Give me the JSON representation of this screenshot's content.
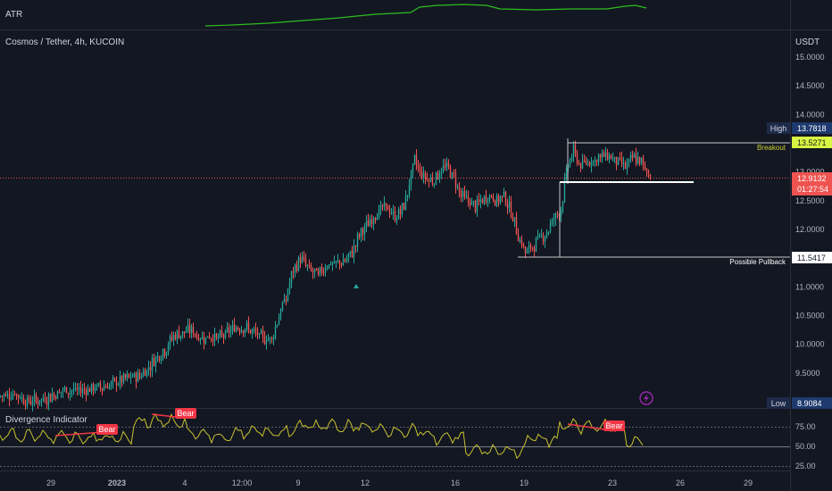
{
  "atr_pane": {
    "label": "ATR",
    "color": "#2ebd1f"
  },
  "header": {
    "symbol": "Cosmos / Tether, 4h, KUCOIN"
  },
  "price_axis": {
    "currency": "USDT",
    "ticks": [
      "15.0000",
      "14.5000",
      "14.0000",
      "13.5000",
      "13.0000",
      "12.5000",
      "12.0000",
      "11.5000",
      "11.0000",
      "10.5000",
      "10.0000",
      "9.5000",
      "9.0000"
    ]
  },
  "badges": {
    "high_label": "High",
    "high_value": "13.7818",
    "breakout_value": "13.5271",
    "last_value": "12.9132",
    "countdown": "01:27:54",
    "pullback_value": "11.5417",
    "low_label": "Low",
    "low_value": "8.9084"
  },
  "annotations": {
    "breakout": "Breakout",
    "pullback": "Possible Pullback"
  },
  "indicator": {
    "title": "Divergence Indicator",
    "ticks": [
      "75.00",
      "50.00",
      "25.00"
    ],
    "bear_label": "Bear",
    "line_color": "#c9c22e",
    "bear_color": "#f23645"
  },
  "time_axis": {
    "labels": [
      "29",
      "2023",
      "4",
      "12:00",
      "9",
      "12",
      "16",
      "19",
      "23",
      "26",
      "29"
    ]
  },
  "chart_data": {
    "type": "candlestick",
    "title": "Cosmos / Tether, 4h, KUCOIN",
    "y_unit": "USDT",
    "ylim": [
      8.8,
      15.3
    ],
    "colors": {
      "up": "#26a69a",
      "down": "#ef5350"
    },
    "close_path": [
      [
        0,
        9.1
      ],
      [
        8,
        9.15
      ],
      [
        15,
        9.0
      ],
      [
        25,
        9.05
      ],
      [
        35,
        9.2
      ],
      [
        45,
        9.2
      ],
      [
        55,
        9.25
      ],
      [
        62,
        9.3
      ],
      [
        70,
        9.4
      ],
      [
        78,
        9.45
      ],
      [
        83,
        9.6
      ],
      [
        88,
        9.8
      ],
      [
        92,
        9.9
      ],
      [
        97,
        10.15
      ],
      [
        102,
        10.2
      ],
      [
        107,
        10.25
      ],
      [
        112,
        10.1
      ],
      [
        117,
        10.15
      ],
      [
        122,
        10.1
      ],
      [
        127,
        10.2
      ],
      [
        132,
        10.3
      ],
      [
        137,
        10.3
      ],
      [
        142,
        10.2
      ],
      [
        147,
        10.1
      ],
      [
        152,
        10.1
      ],
      [
        157,
        10.6
      ],
      [
        160,
        10.8
      ],
      [
        163,
        11.2
      ],
      [
        168,
        11.5
      ],
      [
        173,
        11.3
      ],
      [
        178,
        11.2
      ],
      [
        183,
        11.4
      ],
      [
        188,
        11.4
      ],
      [
        193,
        11.45
      ],
      [
        197,
        11.6
      ],
      [
        201,
        11.9
      ],
      [
        206,
        12.1
      ],
      [
        211,
        12.3
      ],
      [
        216,
        12.4
      ],
      [
        221,
        12.2
      ],
      [
        226,
        12.4
      ],
      [
        229,
        12.8
      ],
      [
        232,
        13.2
      ],
      [
        235,
        13.0
      ],
      [
        238,
        12.9
      ],
      [
        242,
        12.85
      ],
      [
        246,
        13.0
      ],
      [
        250,
        13.1
      ],
      [
        254,
        12.9
      ],
      [
        258,
        12.6
      ],
      [
        262,
        12.5
      ],
      [
        266,
        12.4
      ],
      [
        270,
        12.5
      ],
      [
        274,
        12.6
      ],
      [
        278,
        12.5
      ],
      [
        282,
        12.6
      ],
      [
        286,
        12.3
      ],
      [
        290,
        11.9
      ],
      [
        294,
        11.6
      ],
      [
        298,
        11.7
      ],
      [
        302,
        11.85
      ],
      [
        306,
        11.95
      ],
      [
        310,
        12.2
      ],
      [
        314,
        12.35
      ],
      [
        316,
        12.8
      ],
      [
        318,
        13.15
      ],
      [
        321,
        13.35
      ],
      [
        325,
        13.1
      ],
      [
        330,
        13.2
      ],
      [
        335,
        13.25
      ],
      [
        340,
        13.3
      ],
      [
        345,
        13.2
      ],
      [
        350,
        13.1
      ],
      [
        355,
        13.25
      ],
      [
        360,
        13.15
      ],
      [
        364,
        12.95
      ]
    ],
    "high": 13.7818,
    "low": 8.9084,
    "last_price": 12.9132,
    "levels": [
      {
        "name": "Breakout",
        "price": 13.5271
      },
      {
        "name": "Possible Pullback",
        "price": 11.5417
      }
    ],
    "support_level": 12.83,
    "indicator_series": {
      "name": "Divergence Indicator",
      "ylim": [
        25,
        100
      ],
      "reference_lines": [
        75,
        50,
        25
      ],
      "bear_signals": 3
    },
    "atr_series": {
      "name": "ATR"
    }
  }
}
